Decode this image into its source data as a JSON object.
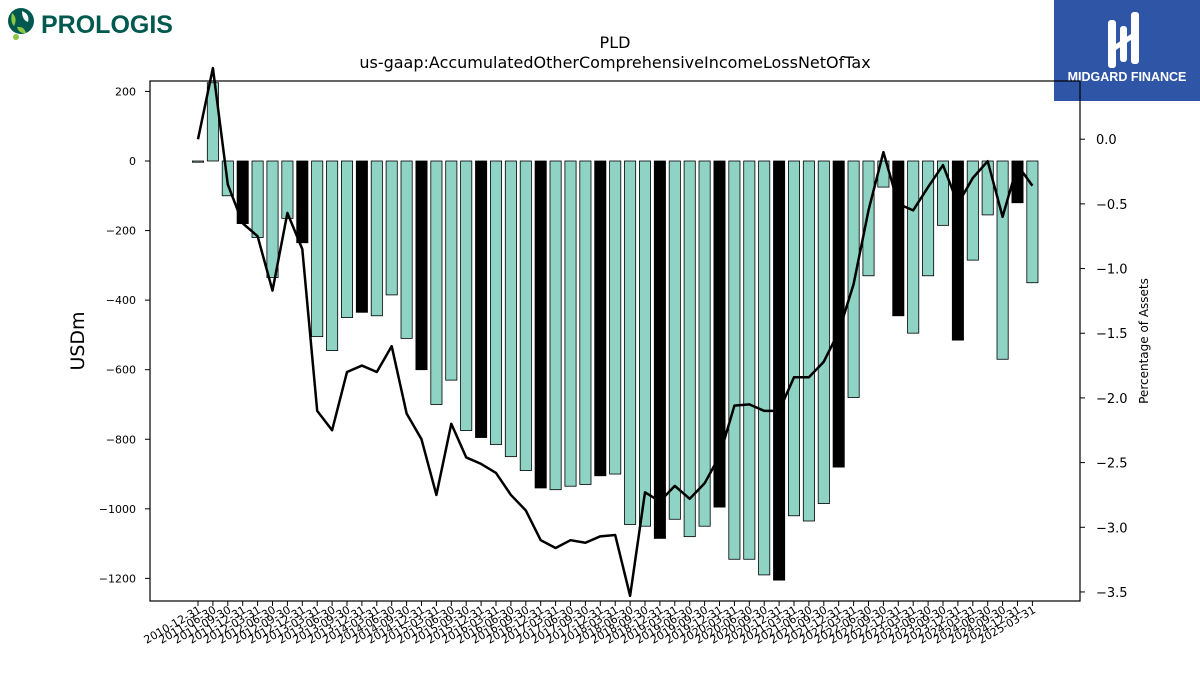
{
  "branding": {
    "left_logo_text": "PROLOGIS",
    "right_logo_text": "MIDGARD FINANCE",
    "colors": {
      "teal": "#00594f",
      "green": "#8dc63f",
      "navy_panel": "#2f55a7"
    }
  },
  "chart_data": {
    "type": "bar",
    "title": "PLD",
    "subtitle": "us-gaap:AccumulatedOtherComprehensiveIncomeLossNetOfTax",
    "ylabel": "USDm",
    "y2label": "Percentage of Assets",
    "ylim": [
      -1265,
      230
    ],
    "y2lim": [
      -3.57,
      0.45
    ],
    "yticks": [
      200,
      0,
      -200,
      -400,
      -600,
      -800,
      -1000,
      -1200
    ],
    "y2ticks": [
      0.0,
      -0.5,
      -1.0,
      -1.5,
      -2.0,
      -2.5,
      -3.0,
      -3.5
    ],
    "grid": false,
    "colors": {
      "bar": "#8fd3c4",
      "bar_highlight": "#000000",
      "line": "#000000"
    },
    "categories": [
      "2010-12-31",
      "2011-06-30",
      "2011-09-30",
      "2011-12-31",
      "2012-03-31",
      "2012-06-30",
      "2012-09-30",
      "2012-12-31",
      "2013-03-31",
      "2013-06-30",
      "2013-09-30",
      "2013-12-31",
      "2014-03-31",
      "2014-06-30",
      "2014-09-30",
      "2014-12-31",
      "2015-03-31",
      "2015-06-30",
      "2015-09-30",
      "2015-12-31",
      "2016-03-31",
      "2016-06-30",
      "2016-09-30",
      "2016-12-31",
      "2017-03-31",
      "2017-06-30",
      "2017-09-30",
      "2017-12-31",
      "2018-03-31",
      "2018-06-30",
      "2018-09-30",
      "2018-12-31",
      "2019-03-31",
      "2019-06-30",
      "2019-09-30",
      "2019-12-31",
      "2020-03-31",
      "2020-06-30",
      "2020-09-30",
      "2020-12-31",
      "2021-03-31",
      "2021-06-30",
      "2021-09-30",
      "2021-12-31",
      "2022-03-31",
      "2022-06-30",
      "2022-09-30",
      "2022-12-31",
      "2023-03-31",
      "2023-06-30",
      "2023-09-30",
      "2023-12-31",
      "2024-03-31",
      "2024-06-30",
      "2024-09-30",
      "2024-12-31",
      "2025-03-31"
    ],
    "x_tick_labels_rendered": [
      "2010-12-31",
      "2011-06-30",
      "2011-09-30",
      "2011-12-31",
      "2012-03-31",
      "2012-06-30",
      "2012-09-30",
      "2012-12-31",
      "2013-03-31",
      "2013-06-30",
      "2013-09-30",
      "2013-12-31",
      "2014-03-31",
      "2014-06-30",
      "2014-09-30",
      "2014-12-31",
      "2015-03-31",
      "2015-06-30",
      "2015-09-30",
      "2015-12-31",
      "2016-03-31",
      "2016-06-30",
      "2016-09-30",
      "2016-12-31",
      "2017-03-31",
      "2017-06-30",
      "2017-09-30",
      "2017-12-31",
      "2018-03-31",
      "2018-06-30",
      "2018-09-30",
      "2018-12-31",
      "2019-03-31",
      "2019-06-30",
      "2019-09-30",
      "2019-12-31",
      "2020-03-31",
      "2020-06-30",
      "2020-09-30",
      "2020-12-31",
      "2021-03-31",
      "2021-06-30",
      "2021-09-30",
      "2021-12-31",
      "2022-03-31",
      "2022-06-30",
      "2022-09-30",
      "2022-12-31",
      "2023-03-31",
      "2023-06-30",
      "2023-09-30",
      "2023-12-31",
      "2024-03-31",
      "2024-06-30",
      "2024-09-30",
      "2024-12-31",
      "2025-03-31"
    ],
    "values": [
      -2,
      225,
      -100,
      -180,
      -220,
      -335,
      -165,
      -235,
      -505,
      -545,
      -450,
      -435,
      -445,
      -385,
      -510,
      -600,
      -700,
      -630,
      -775,
      -795,
      -815,
      -850,
      -890,
      -940,
      -945,
      -935,
      -930,
      -905,
      -900,
      -1045,
      -1050,
      -1085,
      -1030,
      -1080,
      -1050,
      -995,
      -1145,
      -1145,
      -1190,
      -1205,
      -1020,
      -1035,
      -985,
      -880,
      -680,
      -330,
      -75,
      -445,
      -495,
      -330,
      -185,
      -515,
      -285,
      -155,
      -570,
      -120,
      -350
    ],
    "highlight": [
      false,
      false,
      false,
      true,
      false,
      false,
      false,
      true,
      false,
      false,
      false,
      true,
      false,
      false,
      false,
      true,
      false,
      false,
      false,
      true,
      false,
      false,
      false,
      true,
      false,
      false,
      false,
      true,
      false,
      false,
      false,
      true,
      false,
      false,
      false,
      true,
      false,
      false,
      false,
      true,
      false,
      false,
      false,
      true,
      false,
      false,
      false,
      true,
      false,
      false,
      false,
      true,
      false,
      false,
      false,
      true,
      false
    ],
    "percent_of_assets": [
      0.0,
      0.55,
      -0.35,
      -0.65,
      -0.75,
      -1.17,
      -0.57,
      -0.85,
      -2.1,
      -2.25,
      -1.8,
      -1.75,
      -1.8,
      -1.6,
      -2.12,
      -2.32,
      -2.75,
      -2.2,
      -2.46,
      -2.51,
      -2.58,
      -2.75,
      -2.87,
      -3.1,
      -3.16,
      -3.1,
      -3.12,
      -3.07,
      -3.06,
      -3.53,
      -2.73,
      -2.8,
      -2.68,
      -2.78,
      -2.66,
      -2.45,
      -2.06,
      -2.05,
      -2.1,
      -2.1,
      -1.84,
      -1.84,
      -1.72,
      -1.49,
      -1.12,
      -0.55,
      -0.1,
      -0.5,
      -0.55,
      -0.37,
      -0.2,
      -0.5,
      -0.3,
      -0.17,
      -0.6,
      -0.2,
      -0.36
    ]
  }
}
